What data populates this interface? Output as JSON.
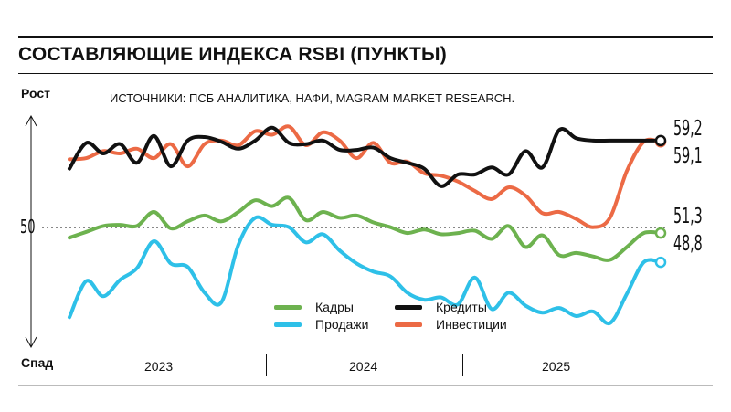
{
  "header": {
    "title": "СОСТАВЛЯЮЩИЕ ИНДЕКСА RSBI (ПУНКТЫ)",
    "source": "ИСТОЧНИКИ: ПСБ АНАЛИТИКА, НАФИ, MAGRAM MARKET RESEARCH."
  },
  "axis": {
    "up_label": "Рост",
    "down_label": "Спад",
    "baseline_label": "50"
  },
  "end_labels": {
    "credits": "59,2",
    "investments": "59,1",
    "staff": "51,3",
    "sales": "48,8"
  },
  "colors": {
    "staff": "#6db24f",
    "sales": "#2ec0e8",
    "credits": "#111111",
    "investments": "#ec6a45"
  },
  "chart_data": {
    "type": "line",
    "title": "СОСТАВЛЯЮЩИЕ ИНДЕКСА RSBI (ПУНКТЫ)",
    "xlabel": "",
    "ylabel": "",
    "x_ticks": [
      "2023",
      "2024",
      "2025"
    ],
    "baseline": 50,
    "ylim": [
      43.5,
      62
    ],
    "xlim": [
      0,
      35
    ],
    "legend_position": "bottom-center",
    "grid": false,
    "x": [
      0,
      1,
      2,
      3,
      4,
      5,
      6,
      7,
      8,
      9,
      10,
      11,
      12,
      13,
      14,
      15,
      16,
      17,
      18,
      19,
      20,
      21,
      22,
      23,
      24,
      25,
      26,
      27,
      28,
      29,
      30,
      31,
      32,
      33,
      34,
      35
    ],
    "series": [
      {
        "name": "Кадры",
        "key": "staff",
        "values": [
          50.9,
          51.4,
          51.9,
          52.0,
          51.9,
          53.1,
          51.7,
          52.3,
          52.8,
          52.3,
          53.1,
          54.1,
          53.6,
          54.3,
          52.4,
          53.1,
          52.6,
          52.8,
          52.2,
          51.8,
          51.3,
          51.6,
          51.2,
          51.3,
          51.5,
          50.8,
          51.9,
          50.1,
          51.1,
          49.4,
          49.6,
          49.3,
          49.0,
          50.1,
          51.3,
          51.3
        ]
      },
      {
        "name": "Продажи",
        "key": "sales",
        "values": [
          44.1,
          47.2,
          45.9,
          47.3,
          48.3,
          50.6,
          48.7,
          48.4,
          46.2,
          45.4,
          50.3,
          52.6,
          52.0,
          51.8,
          50.5,
          51.2,
          49.8,
          48.7,
          48.0,
          47.6,
          46.2,
          45.6,
          45.8,
          45.2,
          47.5,
          44.8,
          46.2,
          45.1,
          44.5,
          44.9,
          44.2,
          44.6,
          43.6,
          46.1,
          48.8,
          48.8
        ]
      },
      {
        "name": "Кредиты",
        "key": "credits",
        "values": [
          56.8,
          59.0,
          58.1,
          58.9,
          57.3,
          59.6,
          57.0,
          59.2,
          59.5,
          59.1,
          58.5,
          59.2,
          60.3,
          59.0,
          58.9,
          59.2,
          58.4,
          58.4,
          58.6,
          57.7,
          57.3,
          56.8,
          55.3,
          56.3,
          56.3,
          56.9,
          56.3,
          58.3,
          56.9,
          60.1,
          59.4,
          59.2,
          59.2,
          59.2,
          59.2,
          59.2
        ]
      },
      {
        "name": "Инвестиции",
        "key": "investments",
        "values": [
          57.6,
          57.7,
          58.3,
          58.1,
          58.5,
          57.7,
          58.9,
          57.0,
          58.9,
          59.2,
          58.8,
          60.0,
          59.7,
          60.4,
          58.8,
          59.9,
          59.2,
          57.7,
          59.0,
          57.3,
          57.4,
          56.4,
          56.2,
          55.7,
          54.9,
          54.2,
          55.2,
          54.5,
          53.0,
          53.1,
          52.5,
          51.8,
          52.6,
          56.6,
          59.1,
          59.1
        ]
      }
    ]
  },
  "legend": [
    {
      "key": "staff",
      "label": "Кадры"
    },
    {
      "key": "credits",
      "label": "Кредиты"
    },
    {
      "key": "sales",
      "label": "Продажи"
    },
    {
      "key": "investments",
      "label": "Инвестиции"
    }
  ]
}
